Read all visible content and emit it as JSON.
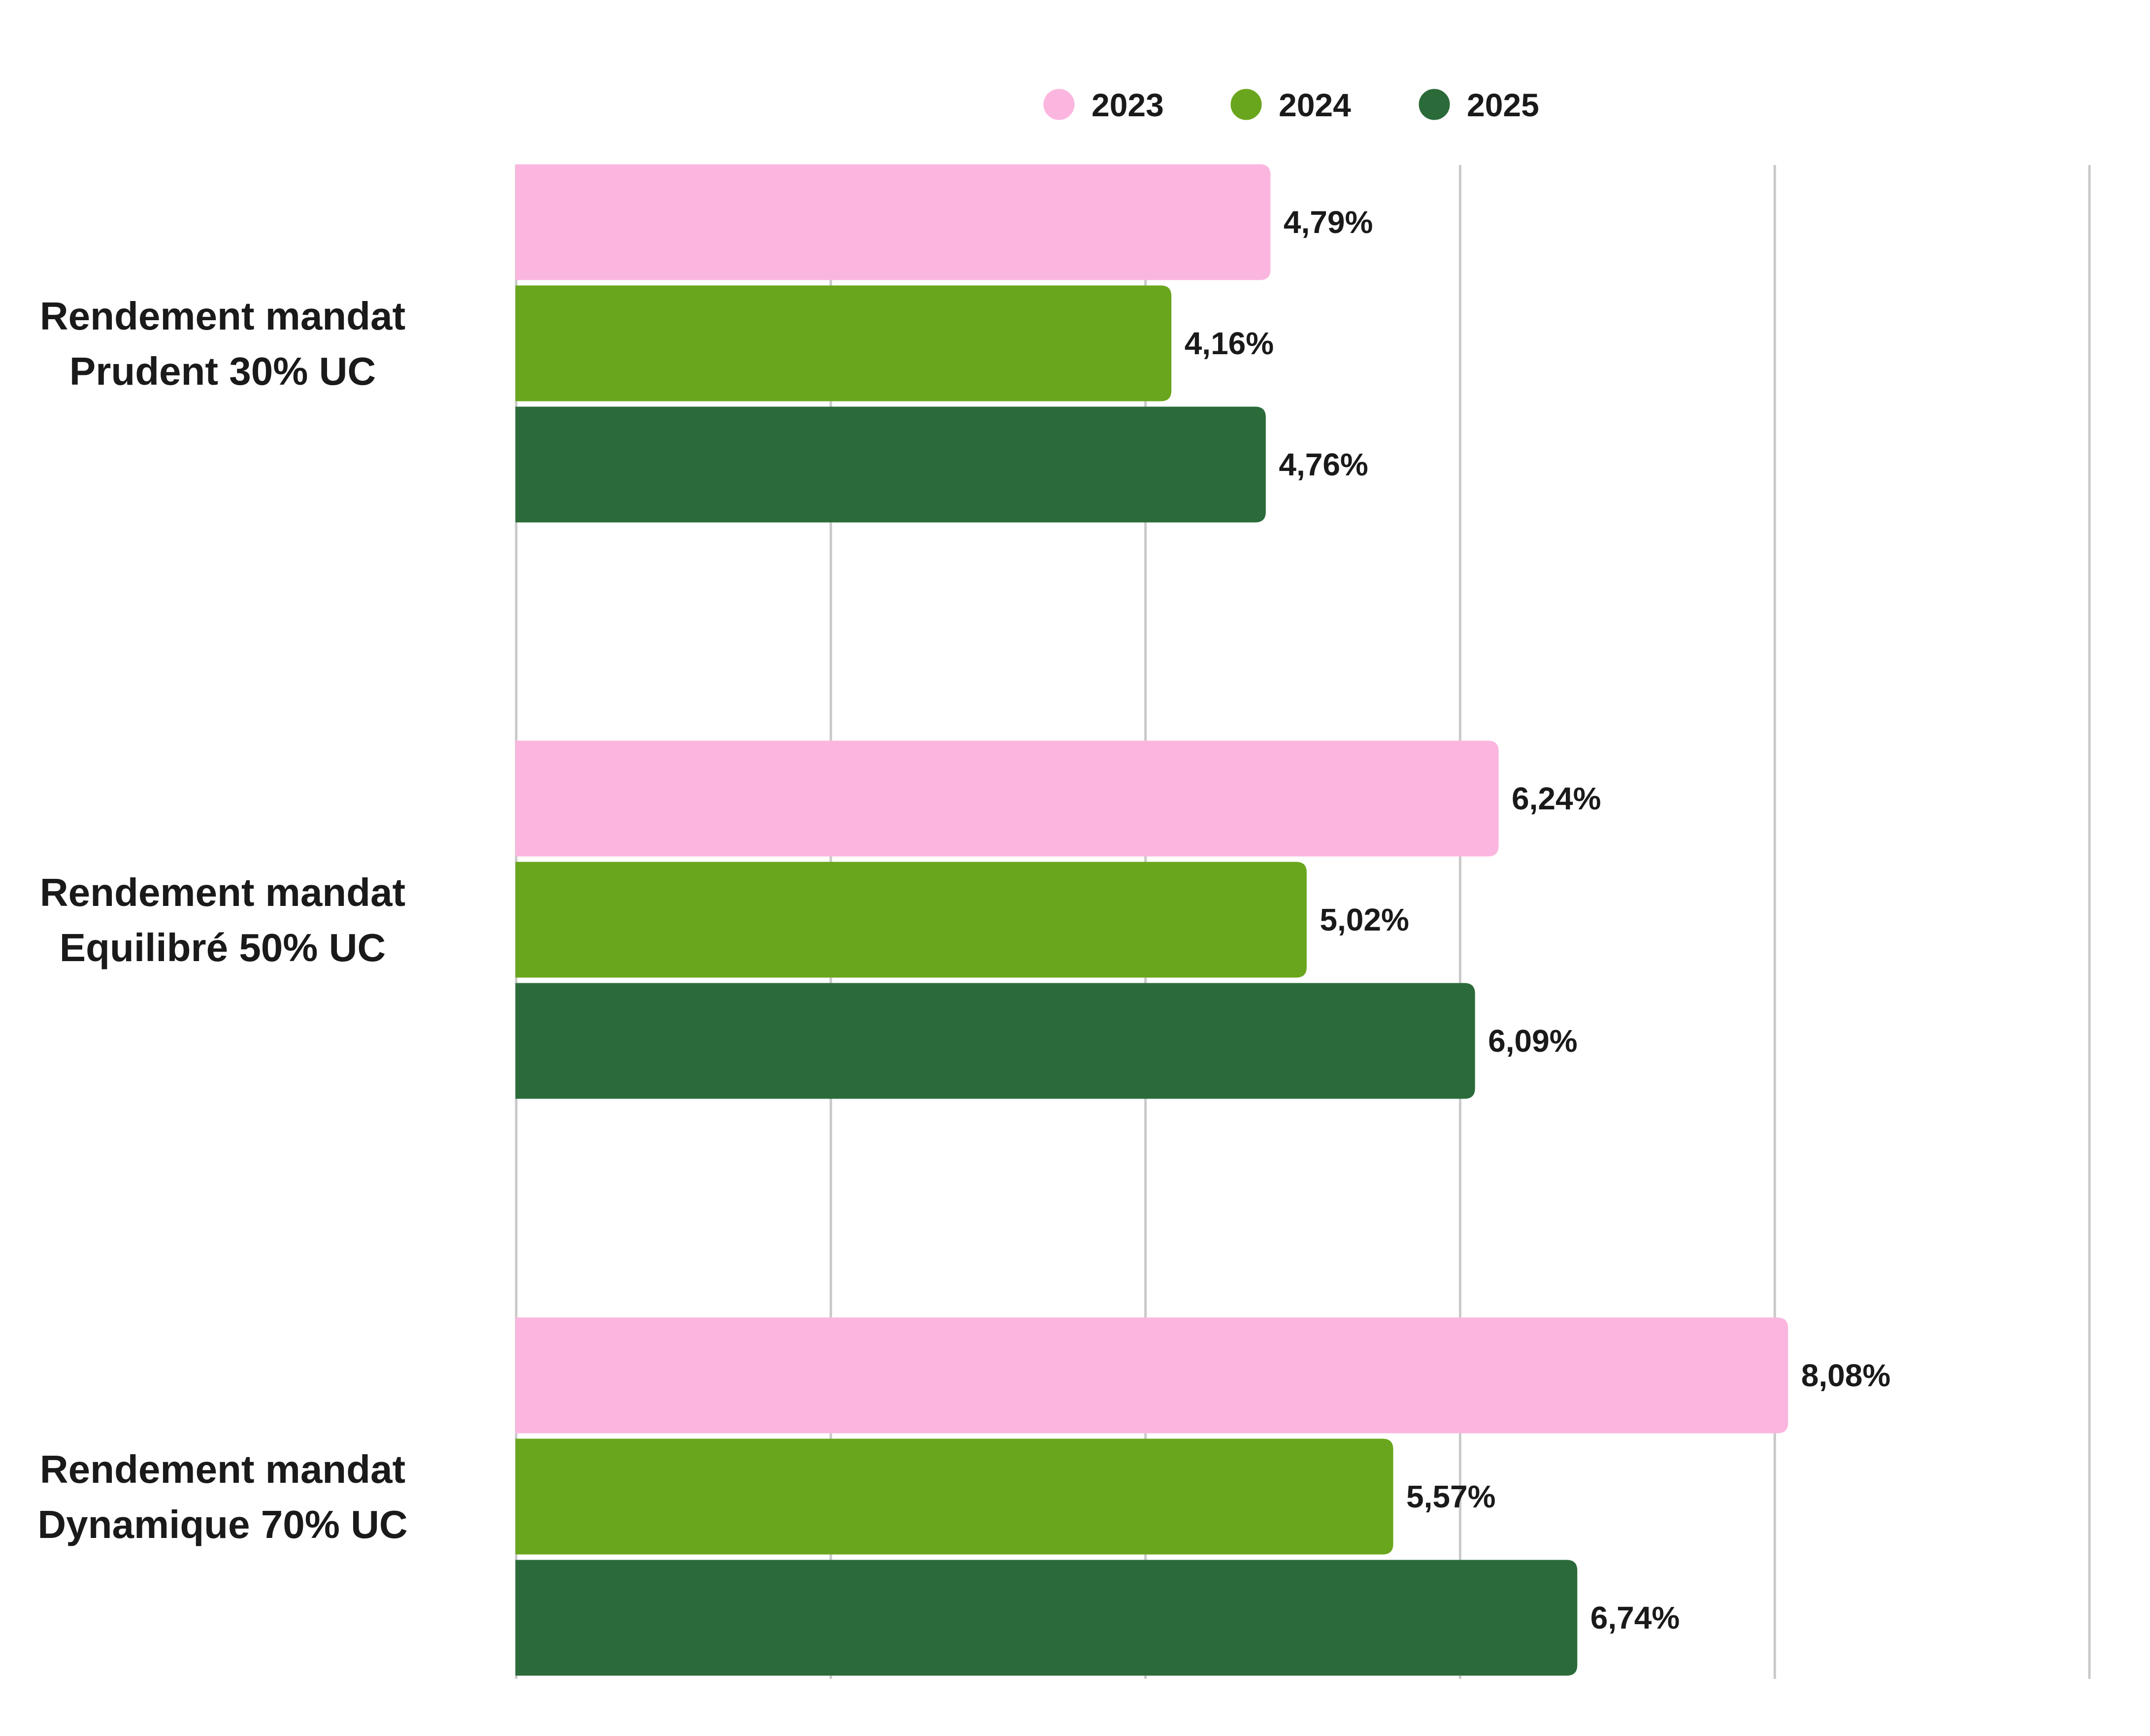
{
  "chart_data": {
    "type": "bar",
    "orientation": "horizontal",
    "categories": [
      [
        "Rendement mandat",
        "Prudent 30% UC"
      ],
      [
        "Rendement mandat",
        "Equilibré 50% UC"
      ],
      [
        "Rendement mandat",
        "Dynamique 70% UC"
      ]
    ],
    "series": [
      {
        "name": "2023",
        "color": "#fbb6df",
        "values": [
          4.79,
          6.24,
          8.08
        ],
        "labels": [
          "4,79%",
          "6,24%",
          "8,08%"
        ]
      },
      {
        "name": "2024",
        "color": "#6aa61d",
        "values": [
          4.16,
          5.02,
          5.57
        ],
        "labels": [
          "4,16%",
          "5,02%",
          "5,57%"
        ]
      },
      {
        "name": "2025",
        "color": "#2b6b3a",
        "values": [
          4.76,
          6.09,
          6.74
        ],
        "labels": [
          "4,76%",
          "6,09%",
          "6,74%"
        ]
      }
    ],
    "xlim": [
      0,
      10
    ],
    "grid_step": 2,
    "grid": true,
    "legend_position": "top-center",
    "title": "",
    "xlabel": "",
    "ylabel": ""
  }
}
